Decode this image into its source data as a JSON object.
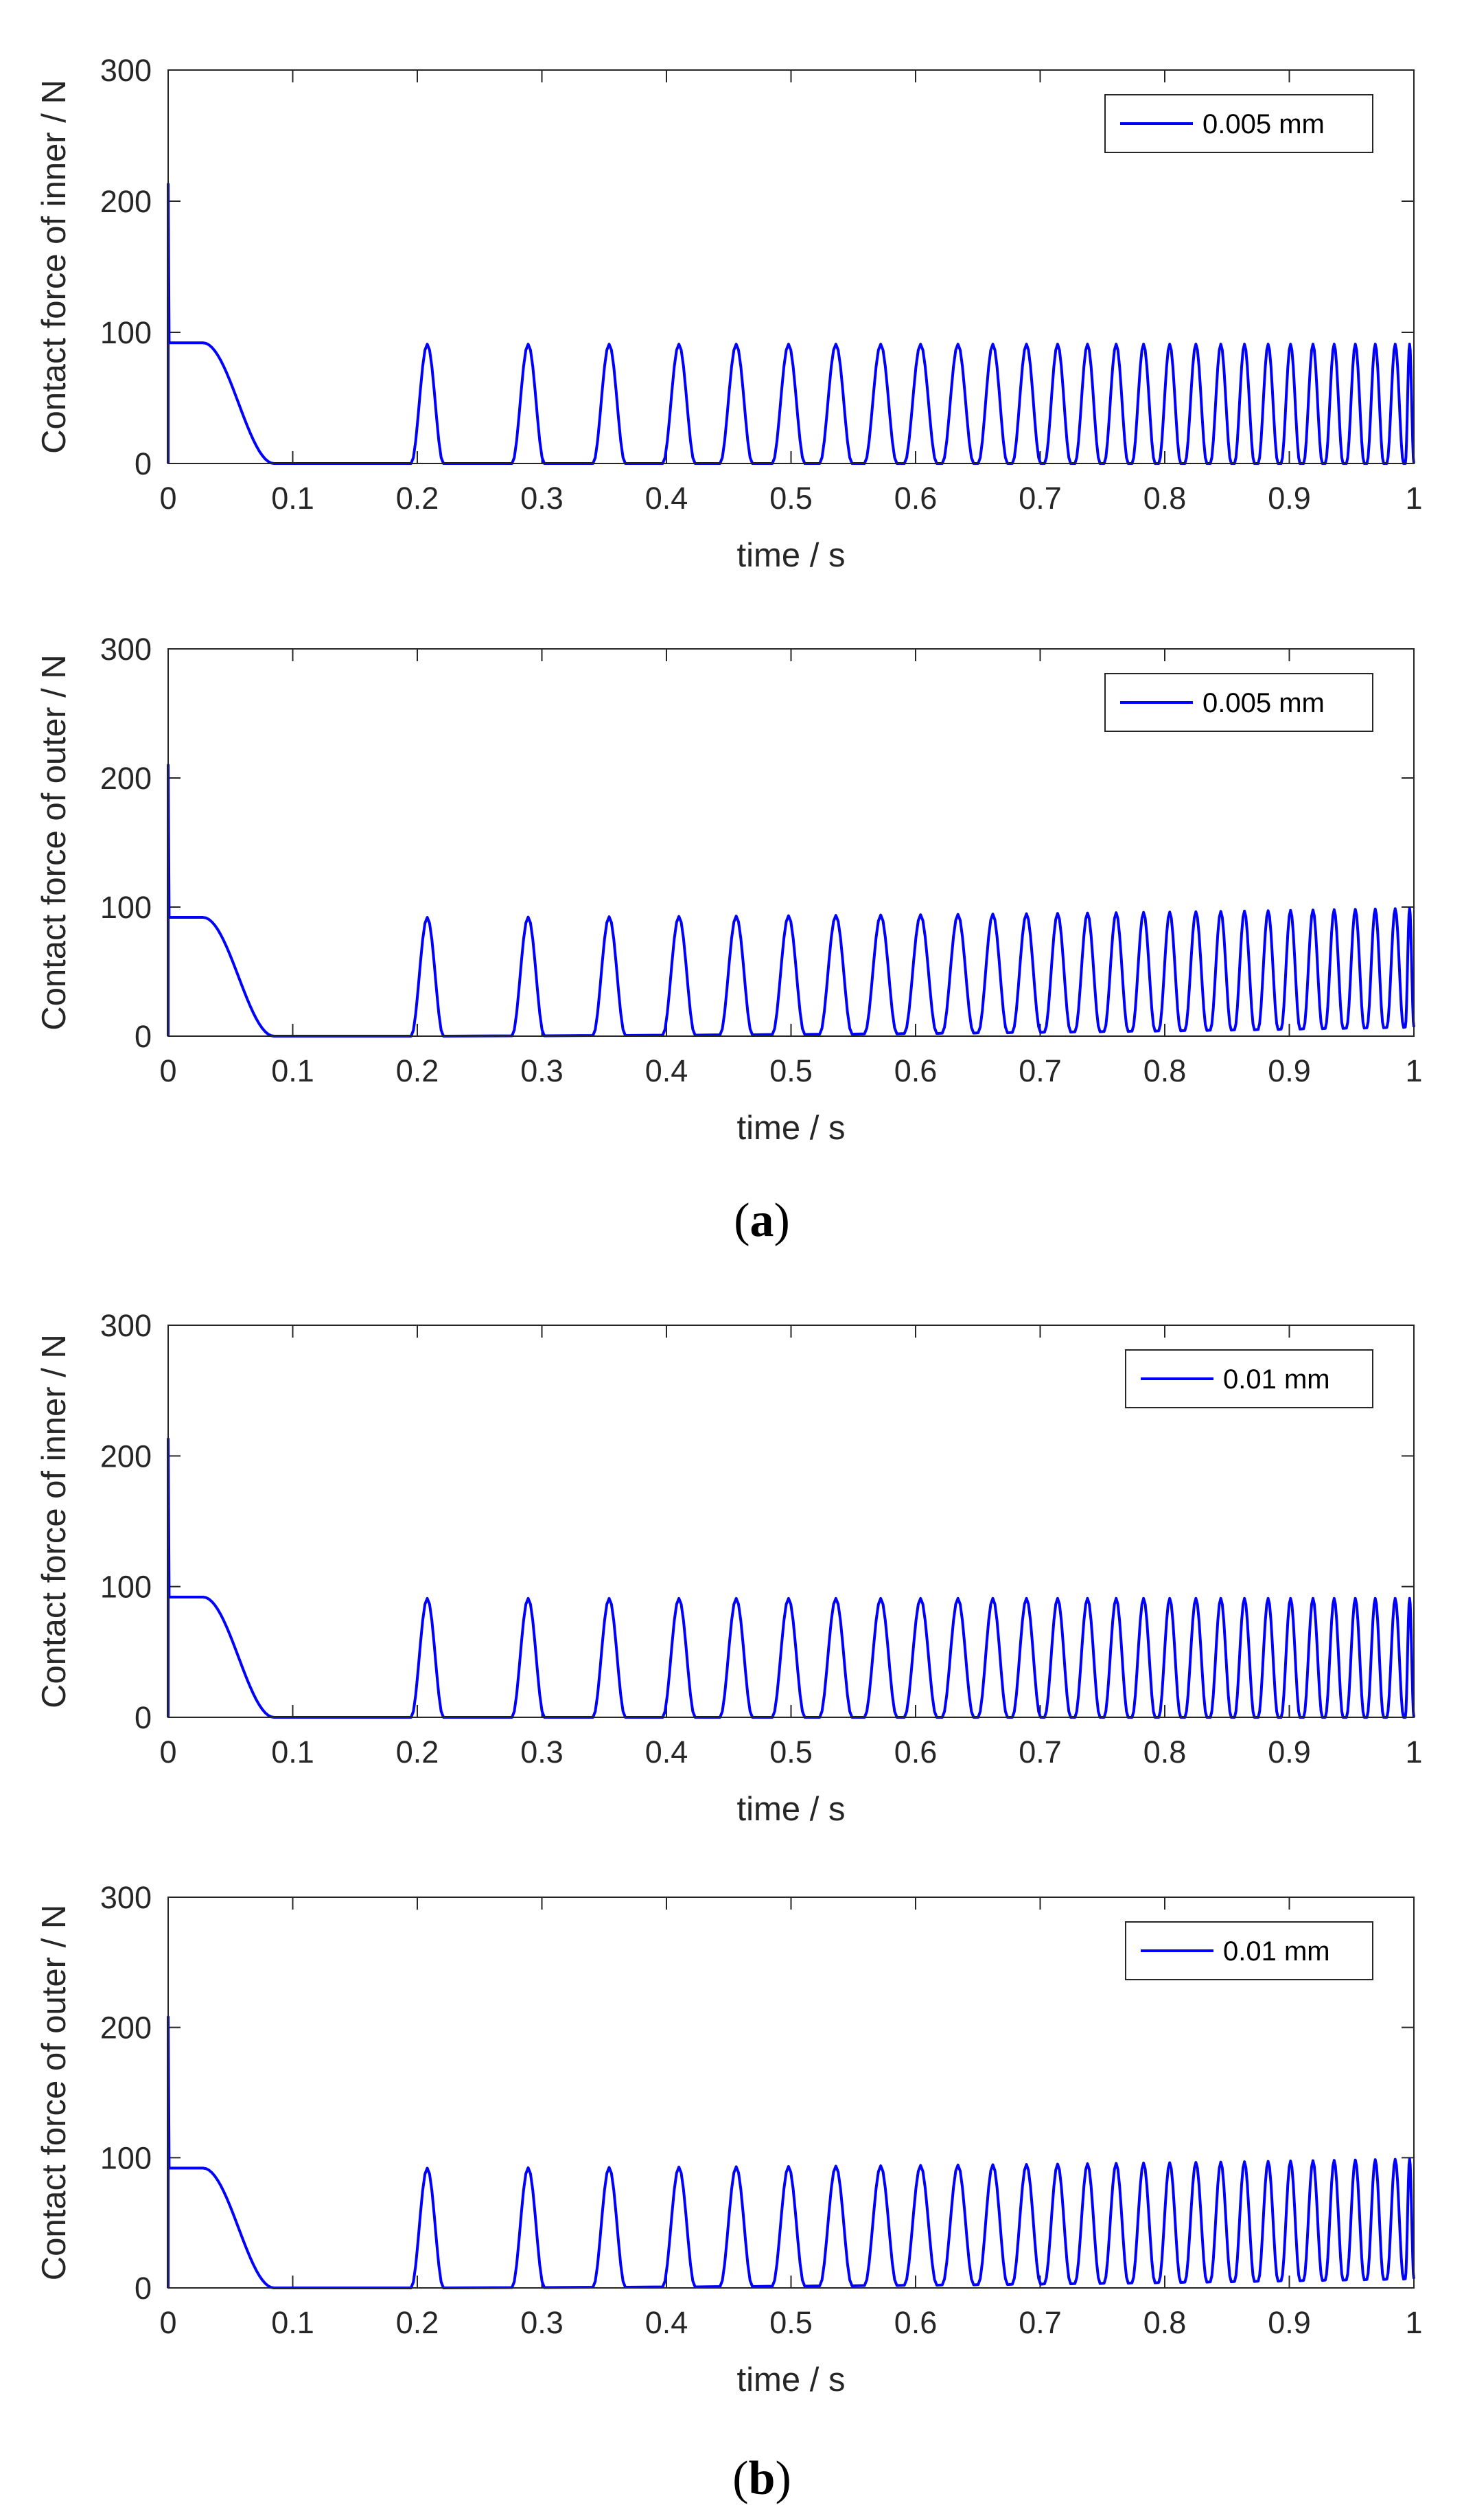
{
  "figure": {
    "panel_labels": [
      {
        "open": "(",
        "letter": "a",
        "close": ")"
      },
      {
        "open": "(",
        "letter": "b",
        "close": ")"
      }
    ],
    "colors": {
      "series": "#0000ff",
      "axes": "#262626",
      "legend_border": "#262626"
    }
  },
  "chart_data": [
    {
      "type": "line",
      "ylabel": "Contact force of inner / N",
      "xlabel": "time / s",
      "xlim": [
        0,
        1
      ],
      "ylim": [
        0,
        300
      ],
      "xticks": [
        "0",
        "0.1",
        "0.2",
        "0.3",
        "0.4",
        "0.5",
        "0.6",
        "0.7",
        "0.8",
        "0.9",
        "1"
      ],
      "yticks": [
        "0",
        "100",
        "200",
        "300"
      ],
      "legend": "0.005 mm",
      "legend_position": "top-right",
      "series": [
        {
          "name": "0.005 mm",
          "initial_spike": 213,
          "plateau_level": 92,
          "plateau_end": 0.028,
          "fall_end": 0.085,
          "peak_times": [
            0.208,
            0.289,
            0.354,
            0.41,
            0.456,
            0.498,
            0.536,
            0.572,
            0.604,
            0.634,
            0.662,
            0.689,
            0.714,
            0.738,
            0.761,
            0.783,
            0.804,
            0.825,
            0.845,
            0.864,
            0.883,
            0.901,
            0.919,
            0.936,
            0.953,
            0.969,
            0.985,
            0.999
          ],
          "peak_start": 91,
          "peak_end": 91,
          "baseline_start": 0,
          "baseline_end": 0
        }
      ]
    },
    {
      "type": "line",
      "ylabel": "Contact force of outer / N",
      "xlabel": "time / s",
      "xlim": [
        0,
        1
      ],
      "ylim": [
        0,
        300
      ],
      "xticks": [
        "0",
        "0.1",
        "0.2",
        "0.3",
        "0.4",
        "0.5",
        "0.6",
        "0.7",
        "0.8",
        "0.9",
        "1"
      ],
      "yticks": [
        "0",
        "100",
        "200",
        "300"
      ],
      "legend": "0.005 mm",
      "legend_position": "top-right",
      "series": [
        {
          "name": "0.005 mm",
          "initial_spike": 210,
          "plateau_level": 92,
          "plateau_end": 0.028,
          "fall_end": 0.085,
          "peak_times": [
            0.208,
            0.289,
            0.354,
            0.41,
            0.456,
            0.498,
            0.536,
            0.572,
            0.604,
            0.634,
            0.662,
            0.689,
            0.714,
            0.738,
            0.761,
            0.783,
            0.804,
            0.825,
            0.845,
            0.864,
            0.883,
            0.901,
            0.919,
            0.936,
            0.953,
            0.969,
            0.985,
            0.999
          ],
          "peak_start": 92,
          "peak_end": 99,
          "baseline_start": 0,
          "baseline_end": 7
        }
      ]
    },
    {
      "type": "line",
      "ylabel": "Contact force of inner / N",
      "xlabel": "time / s",
      "xlim": [
        0,
        1
      ],
      "ylim": [
        0,
        300
      ],
      "xticks": [
        "0",
        "0.1",
        "0.2",
        "0.3",
        "0.4",
        "0.5",
        "0.6",
        "0.7",
        "0.8",
        "0.9",
        "1"
      ],
      "yticks": [
        "0",
        "100",
        "200",
        "300"
      ],
      "legend": "0.01 mm",
      "legend_position": "top-right",
      "series": [
        {
          "name": "0.01 mm",
          "initial_spike": 213,
          "plateau_level": 92,
          "plateau_end": 0.028,
          "fall_end": 0.085,
          "peak_times": [
            0.208,
            0.289,
            0.354,
            0.41,
            0.456,
            0.498,
            0.536,
            0.572,
            0.604,
            0.634,
            0.662,
            0.689,
            0.714,
            0.738,
            0.761,
            0.783,
            0.804,
            0.825,
            0.845,
            0.864,
            0.883,
            0.901,
            0.919,
            0.936,
            0.953,
            0.969,
            0.985,
            0.999
          ],
          "peak_start": 91,
          "peak_end": 91,
          "baseline_start": 0,
          "baseline_end": 0
        }
      ]
    },
    {
      "type": "line",
      "ylabel": "Contact force of outer / N",
      "xlabel": "time / s",
      "xlim": [
        0,
        1
      ],
      "ylim": [
        0,
        300
      ],
      "xticks": [
        "0",
        "0.1",
        "0.2",
        "0.3",
        "0.4",
        "0.5",
        "0.6",
        "0.7",
        "0.8",
        "0.9",
        "1"
      ],
      "yticks": [
        "0",
        "100",
        "200",
        "300"
      ],
      "legend": "0.01 mm",
      "legend_position": "top-right",
      "series": [
        {
          "name": "0.01 mm",
          "initial_spike": 208,
          "plateau_level": 92,
          "plateau_end": 0.028,
          "fall_end": 0.085,
          "peak_times": [
            0.208,
            0.289,
            0.354,
            0.41,
            0.456,
            0.498,
            0.536,
            0.572,
            0.604,
            0.634,
            0.662,
            0.689,
            0.714,
            0.738,
            0.761,
            0.783,
            0.804,
            0.825,
            0.845,
            0.864,
            0.883,
            0.901,
            0.919,
            0.936,
            0.953,
            0.969,
            0.985,
            0.999
          ],
          "peak_start": 92,
          "peak_end": 99,
          "baseline_start": 0,
          "baseline_end": 7
        }
      ]
    }
  ]
}
